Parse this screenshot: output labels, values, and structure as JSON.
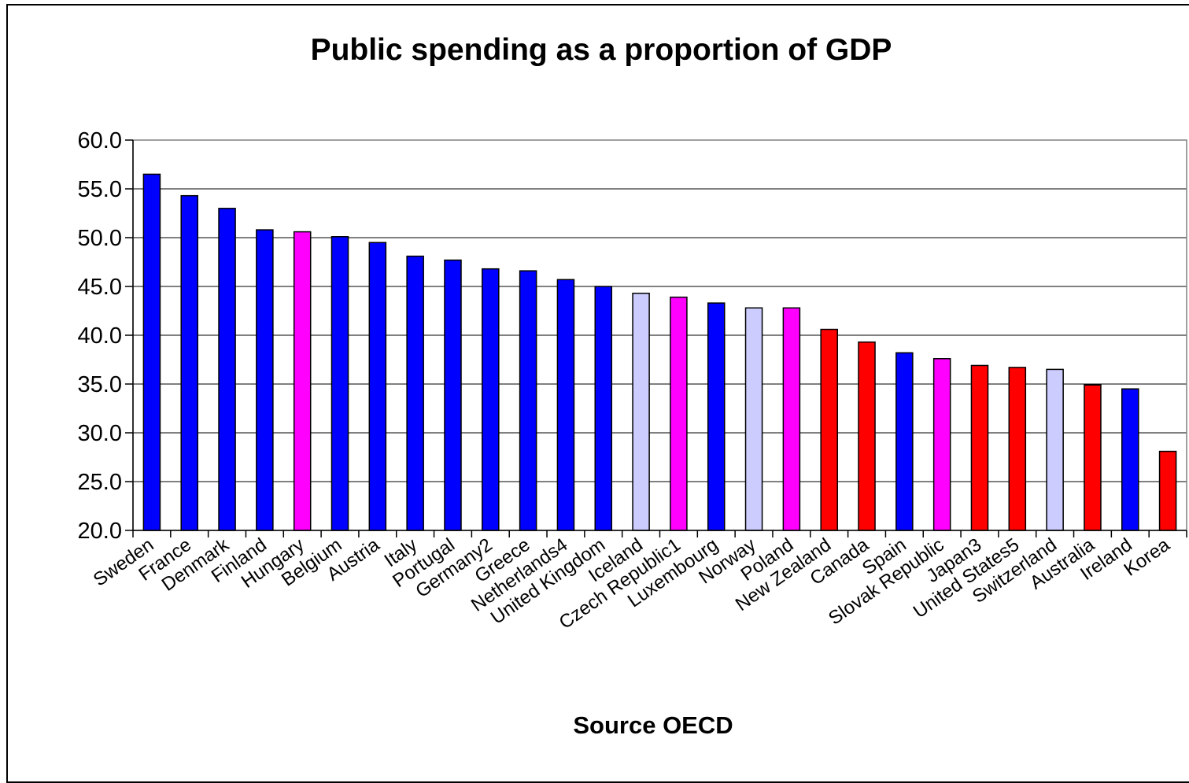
{
  "chart_data": {
    "type": "bar",
    "title": "Public spending as a proportion of GDP",
    "xlabel": "Source OECD",
    "ylabel": "",
    "ylim": [
      20,
      60
    ],
    "yticks": [
      20,
      25,
      30,
      35,
      40,
      45,
      50,
      55,
      60
    ],
    "ytick_labels": [
      "20.0",
      "25.0",
      "30.0",
      "35.0",
      "40.0",
      "45.0",
      "50.0",
      "55.0",
      "60.0"
    ],
    "grid": true,
    "legend": "none",
    "categories": [
      "Sweden",
      "France",
      "Denmark",
      "Finland",
      "Hungary",
      "Belgium",
      "Austria",
      "Italy",
      "Portugal",
      "Germany2",
      "Greece",
      "Netherlands4",
      "United Kingdom",
      "Iceland",
      "Czech Republic1",
      "Luxembourg",
      "Norway",
      "Poland",
      "New Zealand",
      "Canada",
      "Spain",
      "Slovak Republic",
      "Japan3",
      "United States5",
      "Switzerland",
      "Australia",
      "Ireland",
      "Korea"
    ],
    "values": [
      56.5,
      54.3,
      53.0,
      50.8,
      50.6,
      50.1,
      49.5,
      48.1,
      47.7,
      46.8,
      46.6,
      45.7,
      45.0,
      44.3,
      43.9,
      43.3,
      42.8,
      42.8,
      40.6,
      39.3,
      38.2,
      37.6,
      36.9,
      36.7,
      36.5,
      34.9,
      34.5,
      28.1
    ],
    "bar_colors": [
      "#0000ff",
      "#0000ff",
      "#0000ff",
      "#0000ff",
      "#ff00ff",
      "#0000ff",
      "#0000ff",
      "#0000ff",
      "#0000ff",
      "#0000ff",
      "#0000ff",
      "#0000ff",
      "#0000ff",
      "#ccccff",
      "#ff00ff",
      "#0000ff",
      "#ccccff",
      "#ff00ff",
      "#ff0000",
      "#ff0000",
      "#0000ff",
      "#ff00ff",
      "#ff0000",
      "#ff0000",
      "#ccccff",
      "#ff0000",
      "#0000ff",
      "#ff0000"
    ]
  }
}
